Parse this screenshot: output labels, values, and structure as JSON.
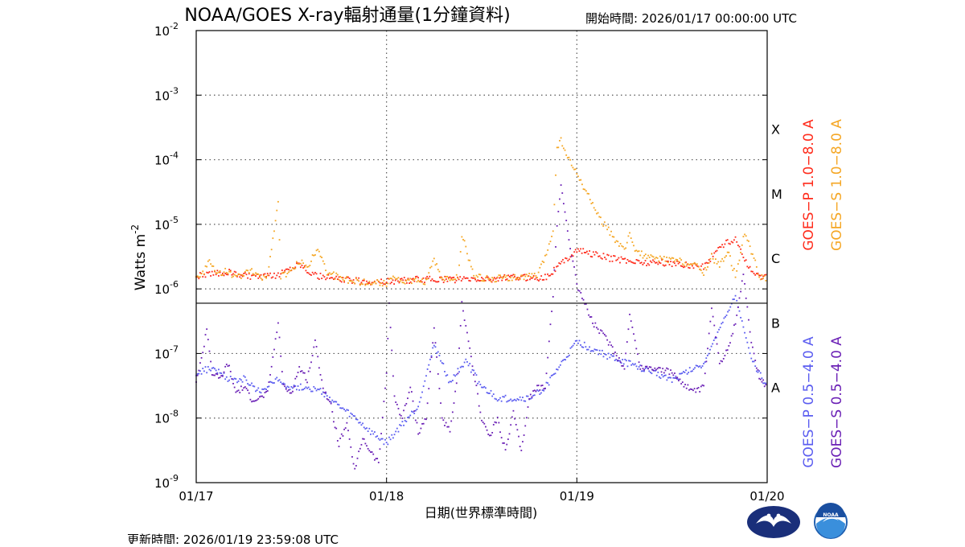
{
  "header": {
    "title": "NOAA/GOES X-ray輻射通量(1分鐘資料)",
    "start_time": "開始時間:  2026/01/17 00:00:00 UTC"
  },
  "footer": {
    "update_time": "更新時間: 2026/01/19 23:59:08 UTC"
  },
  "logos": {
    "left_icon": "cwa-logo-icon",
    "right_icon": "noaa-logo-icon",
    "noaa_text": "NOAA"
  },
  "chart_data": {
    "type": "scatter",
    "title": "NOAA/GOES X-ray輻射通量(1分鐘資料)",
    "xlabel": "日期(世界標準時間)",
    "ylabel": "Watts m",
    "ylabel_exponent": "-2",
    "yscale": "log",
    "ylim": [
      1e-09,
      0.01
    ],
    "xlim": [
      "2026-01-17T00:00",
      "2026-01-20T00:00"
    ],
    "x_ticks": [
      "01/17",
      "01/18",
      "01/19",
      "01/20"
    ],
    "y_ticks": [
      {
        "base": "10",
        "exp": "-9"
      },
      {
        "base": "10",
        "exp": "-8"
      },
      {
        "base": "10",
        "exp": "-7"
      },
      {
        "base": "10",
        "exp": "-6"
      },
      {
        "base": "10",
        "exp": "-5"
      },
      {
        "base": "10",
        "exp": "-4"
      },
      {
        "base": "10",
        "exp": "-3"
      },
      {
        "base": "10",
        "exp": "-2"
      }
    ],
    "grid": "dotted",
    "flare_classes": [
      {
        "label": "X",
        "level": 0.0001
      },
      {
        "label": "M",
        "level": 1e-05
      },
      {
        "label": "C",
        "level": 1e-06
      },
      {
        "label": "B",
        "level": 1e-07
      },
      {
        "label": "A",
        "level": 1e-08
      }
    ],
    "class_boundary": 6e-07,
    "legend_right": [
      {
        "name": "GOES−P 1.0−8.0 A",
        "color": "#ff2a1a"
      },
      {
        "name": "GOES−S 1.0−8.0 A",
        "color": "#f5a623"
      },
      {
        "name": "GOES−P 0.5−4.0 A",
        "color": "#5a5cf0"
      },
      {
        "name": "GOES−S 0.5−4.0 A",
        "color": "#6a1fb5"
      }
    ],
    "series": [
      {
        "name": "GOES−P 1.0−8.0 A",
        "color": "#ff2a1a",
        "points": [
          [
            "2026-01-17T00:00",
            1.6e-06
          ],
          [
            "2026-01-17T02:00",
            1.7e-06
          ],
          [
            "2026-01-17T04:00",
            1.8e-06
          ],
          [
            "2026-01-17T06:00",
            1.6e-06
          ],
          [
            "2026-01-17T08:00",
            1.5e-06
          ],
          [
            "2026-01-17T10:00",
            1.6e-06
          ],
          [
            "2026-01-17T13:00",
            2.5e-06
          ],
          [
            "2026-01-17T15:00",
            1.6e-06
          ],
          [
            "2026-01-17T18:00",
            1.4e-06
          ],
          [
            "2026-01-17T21:00",
            1.3e-06
          ],
          [
            "2026-01-18T00:00",
            1.3e-06
          ],
          [
            "2026-01-18T04:00",
            1.4e-06
          ],
          [
            "2026-01-18T08:00",
            1.4e-06
          ],
          [
            "2026-01-18T12:00",
            1.4e-06
          ],
          [
            "2026-01-18T16:00",
            1.5e-06
          ],
          [
            "2026-01-18T20:00",
            1.5e-06
          ],
          [
            "2026-01-19T00:00",
            4e-06
          ],
          [
            "2026-01-19T04:00",
            3e-06
          ],
          [
            "2026-01-19T08:00",
            2.6e-06
          ],
          [
            "2026-01-19T12:00",
            2.5e-06
          ],
          [
            "2026-01-19T16:00",
            2.2e-06
          ],
          [
            "2026-01-19T18:00",
            4.5e-06
          ],
          [
            "2026-01-19T20:00",
            6e-06
          ],
          [
            "2026-01-19T22:00",
            1.8e-06
          ],
          [
            "2026-01-20T00:00",
            1.5e-06
          ]
        ]
      },
      {
        "name": "GOES−S 1.0−8.0 A",
        "color": "#f5a623",
        "points": [
          [
            "2026-01-17T00:00",
            1.6e-06
          ],
          [
            "2026-01-17T01:00",
            1.8e-06
          ],
          [
            "2026-01-17T01:30",
            2.8e-06
          ],
          [
            "2026-01-17T02:30",
            1.7e-06
          ],
          [
            "2026-01-17T04:00",
            1.9e-06
          ],
          [
            "2026-01-17T05:00",
            1.5e-06
          ],
          [
            "2026-01-17T07:00",
            1.9e-06
          ],
          [
            "2026-01-17T08:00",
            1.5e-06
          ],
          [
            "2026-01-17T09:00",
            1.6e-06
          ],
          [
            "2026-01-17T10:20",
            2.2e-05
          ],
          [
            "2026-01-17T10:40",
            1.6e-06
          ],
          [
            "2026-01-17T12:00",
            1.8e-06
          ],
          [
            "2026-01-17T13:00",
            2.7e-06
          ],
          [
            "2026-01-17T14:00",
            2.1e-06
          ],
          [
            "2026-01-17T15:20",
            4.5e-06
          ],
          [
            "2026-01-17T16:30",
            1.8e-06
          ],
          [
            "2026-01-17T18:00",
            1.5e-06
          ],
          [
            "2026-01-17T20:00",
            1.3e-06
          ],
          [
            "2026-01-17T22:00",
            1.25e-06
          ],
          [
            "2026-01-18T00:00",
            1.2e-06
          ],
          [
            "2026-01-18T00:30",
            1.6e-06
          ],
          [
            "2026-01-18T02:00",
            1.3e-06
          ],
          [
            "2026-01-18T04:00",
            1.3e-06
          ],
          [
            "2026-01-18T05:00",
            1.3e-06
          ],
          [
            "2026-01-18T06:00",
            2.8e-06
          ],
          [
            "2026-01-18T07:00",
            1.4e-06
          ],
          [
            "2026-01-18T09:00",
            1.5e-06
          ],
          [
            "2026-01-18T09:30",
            7e-06
          ],
          [
            "2026-01-18T11:00",
            1.6e-06
          ],
          [
            "2026-01-18T13:00",
            1.4e-06
          ],
          [
            "2026-01-18T15:00",
            1.5e-06
          ],
          [
            "2026-01-18T17:00",
            1.5e-06
          ],
          [
            "2026-01-18T19:00",
            1.6e-06
          ],
          [
            "2026-01-18T20:00",
            3e-06
          ],
          [
            "2026-01-18T21:00",
            8e-06
          ],
          [
            "2026-01-18T21:30",
            0.00015
          ],
          [
            "2026-01-18T22:00",
            0.0002
          ],
          [
            "2026-01-18T23:00",
            0.0001
          ],
          [
            "2026-01-19T01:00",
            3.5e-05
          ],
          [
            "2026-01-19T03:00",
            1.2e-05
          ],
          [
            "2026-01-19T05:00",
            5.5e-06
          ],
          [
            "2026-01-19T06:00",
            3.8e-06
          ],
          [
            "2026-01-19T06:40",
            7e-06
          ],
          [
            "2026-01-19T07:30",
            3.8e-06
          ],
          [
            "2026-01-19T09:00",
            3e-06
          ],
          [
            "2026-01-19T11:00",
            2.9e-06
          ],
          [
            "2026-01-19T13:00",
            2.7e-06
          ],
          [
            "2026-01-19T15:00",
            2.3e-06
          ],
          [
            "2026-01-19T16:00",
            1.8e-06
          ],
          [
            "2026-01-19T17:00",
            3.2e-06
          ],
          [
            "2026-01-19T18:00",
            2.2e-06
          ],
          [
            "2026-01-19T19:00",
            4e-06
          ],
          [
            "2026-01-19T20:00",
            1.6e-06
          ],
          [
            "2026-01-19T20:30",
            3e-06
          ],
          [
            "2026-01-19T21:00",
            7e-06
          ],
          [
            "2026-01-19T21:40",
            5e-06
          ],
          [
            "2026-01-19T22:30",
            2.5e-06
          ],
          [
            "2026-01-19T23:00",
            1.5e-06
          ],
          [
            "2026-01-20T00:00",
            1.5e-06
          ]
        ]
      },
      {
        "name": "GOES−P 0.5−4.0 A",
        "color": "#5a5cf0",
        "points": [
          [
            "2026-01-17T00:00",
            5e-08
          ],
          [
            "2026-01-17T02:00",
            6e-08
          ],
          [
            "2026-01-17T04:00",
            4e-08
          ],
          [
            "2026-01-17T06:00",
            4e-08
          ],
          [
            "2026-01-17T08:00",
            2.5e-08
          ],
          [
            "2026-01-17T10:00",
            4e-08
          ],
          [
            "2026-01-17T12:00",
            3e-08
          ],
          [
            "2026-01-17T14:00",
            3e-08
          ],
          [
            "2026-01-17T16:00",
            2.5e-08
          ],
          [
            "2026-01-17T18:00",
            1.5e-08
          ],
          [
            "2026-01-17T20:00",
            1e-08
          ],
          [
            "2026-01-17T22:00",
            6e-09
          ],
          [
            "2026-01-18T00:00",
            4e-09
          ],
          [
            "2026-01-18T02:00",
            8e-09
          ],
          [
            "2026-01-18T04:00",
            1.5e-08
          ],
          [
            "2026-01-18T06:00",
            1.4e-07
          ],
          [
            "2026-01-18T08:00",
            3.5e-08
          ],
          [
            "2026-01-18T10:00",
            8e-08
          ],
          [
            "2026-01-18T12:00",
            3e-08
          ],
          [
            "2026-01-18T14:00",
            2e-08
          ],
          [
            "2026-01-18T16:00",
            2e-08
          ],
          [
            "2026-01-18T18:00",
            2e-08
          ],
          [
            "2026-01-18T20:00",
            3e-08
          ],
          [
            "2026-01-19T00:00",
            1.5e-07
          ],
          [
            "2026-01-19T04:00",
            9e-08
          ],
          [
            "2026-01-19T08:00",
            6e-08
          ],
          [
            "2026-01-19T12:00",
            4e-08
          ],
          [
            "2026-01-19T16:00",
            7e-08
          ],
          [
            "2026-01-19T20:00",
            8e-07
          ],
          [
            "2026-01-19T22:00",
            8e-08
          ],
          [
            "2026-01-20T00:00",
            3e-08
          ]
        ]
      },
      {
        "name": "GOES−S 0.5−4.0 A",
        "color": "#6a1fb5",
        "points": [
          [
            "2026-01-17T00:00",
            4e-08
          ],
          [
            "2026-01-17T00:40",
            8e-08
          ],
          [
            "2026-01-17T01:20",
            2.5e-07
          ],
          [
            "2026-01-17T02:00",
            5e-08
          ],
          [
            "2026-01-17T03:00",
            4e-08
          ],
          [
            "2026-01-17T04:00",
            7e-08
          ],
          [
            "2026-01-17T05:00",
            2.5e-08
          ],
          [
            "2026-01-17T06:00",
            3e-08
          ],
          [
            "2026-01-17T07:00",
            2e-08
          ],
          [
            "2026-01-17T08:00",
            2e-08
          ],
          [
            "2026-01-17T09:00",
            2.5e-08
          ],
          [
            "2026-01-17T10:20",
            3e-07
          ],
          [
            "2026-01-17T11:00",
            3e-08
          ],
          [
            "2026-01-17T12:00",
            2.5e-08
          ],
          [
            "2026-01-17T13:00",
            6e-08
          ],
          [
            "2026-01-17T14:00",
            4e-08
          ],
          [
            "2026-01-17T15:00",
            1.5e-07
          ],
          [
            "2026-01-17T16:00",
            3e-08
          ],
          [
            "2026-01-17T17:00",
            1.5e-08
          ],
          [
            "2026-01-17T18:00",
            4e-09
          ],
          [
            "2026-01-17T19:00",
            8e-09
          ],
          [
            "2026-01-17T20:00",
            1.5e-09
          ],
          [
            "2026-01-17T21:00",
            5e-09
          ],
          [
            "2026-01-17T22:00",
            3e-09
          ],
          [
            "2026-01-17T23:00",
            2e-09
          ],
          [
            "2026-01-18T00:00",
            5e-08
          ],
          [
            "2026-01-18T00:20",
            6e-07
          ],
          [
            "2026-01-18T01:00",
            2e-08
          ],
          [
            "2026-01-18T02:00",
            1e-08
          ],
          [
            "2026-01-18T03:00",
            3e-08
          ],
          [
            "2026-01-18T04:00",
            6e-09
          ],
          [
            "2026-01-18T05:00",
            1e-08
          ],
          [
            "2026-01-18T06:00",
            2.5e-07
          ],
          [
            "2026-01-18T07:00",
            1e-08
          ],
          [
            "2026-01-18T08:00",
            6e-09
          ],
          [
            "2026-01-18T09:00",
            5e-08
          ],
          [
            "2026-01-18T09:30",
            6e-07
          ],
          [
            "2026-01-18T11:00",
            5e-08
          ],
          [
            "2026-01-18T12:00",
            1e-08
          ],
          [
            "2026-01-18T13:00",
            5e-09
          ],
          [
            "2026-01-18T14:00",
            1e-08
          ],
          [
            "2026-01-18T15:00",
            3e-09
          ],
          [
            "2026-01-18T16:00",
            1.2e-08
          ],
          [
            "2026-01-18T17:00",
            3e-09
          ],
          [
            "2026-01-18T18:00",
            2e-08
          ],
          [
            "2026-01-18T19:00",
            3e-08
          ],
          [
            "2026-01-18T20:00",
            3e-08
          ],
          [
            "2026-01-18T21:00",
            8e-07
          ],
          [
            "2026-01-18T21:30",
            1e-05
          ],
          [
            "2026-01-18T22:00",
            4e-05
          ],
          [
            "2026-01-18T23:00",
            6e-06
          ],
          [
            "2026-01-19T00:00",
            1.2e-06
          ],
          [
            "2026-01-19T02:00",
            3e-07
          ],
          [
            "2026-01-19T04:00",
            1.5e-07
          ],
          [
            "2026-01-19T06:00",
            6e-08
          ],
          [
            "2026-01-19T06:40",
            4e-07
          ],
          [
            "2026-01-19T08:00",
            6e-08
          ],
          [
            "2026-01-19T10:00",
            6e-08
          ],
          [
            "2026-01-19T12:00",
            5e-08
          ],
          [
            "2026-01-19T14:00",
            3e-08
          ],
          [
            "2026-01-19T15:00",
            2.5e-08
          ],
          [
            "2026-01-19T16:00",
            3e-08
          ],
          [
            "2026-01-19T17:00",
            5e-07
          ],
          [
            "2026-01-19T18:00",
            7e-08
          ],
          [
            "2026-01-19T19:00",
            1.2e-07
          ],
          [
            "2026-01-19T20:00",
            3e-07
          ],
          [
            "2026-01-19T21:00",
            1.7e-06
          ],
          [
            "2026-01-19T22:00",
            1.5e-07
          ],
          [
            "2026-01-19T23:00",
            4e-08
          ],
          [
            "2026-01-20T00:00",
            3e-08
          ]
        ]
      }
    ]
  }
}
